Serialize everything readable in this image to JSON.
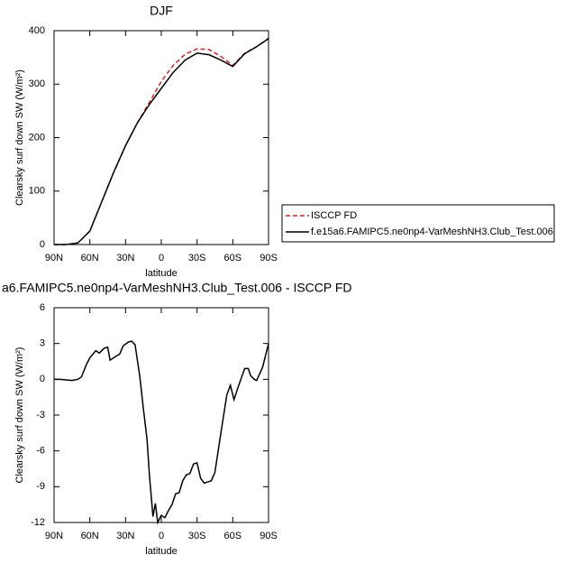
{
  "chart_data": [
    {
      "type": "line",
      "title": "DJF",
      "xlabel": "latitude",
      "ylabel": "Clearsky surf down SW (W/m²)",
      "x": [
        90,
        80,
        70,
        60,
        50,
        40,
        30,
        20,
        10,
        0,
        -10,
        -20,
        -30,
        -40,
        -50,
        -60,
        -70,
        -80,
        -90
      ],
      "xlim": [
        90,
        -90
      ],
      "xticks": [
        {
          "value": 90,
          "label": "90N"
        },
        {
          "value": 60,
          "label": "60N"
        },
        {
          "value": 30,
          "label": "30N"
        },
        0,
        {
          "value": -30,
          "label": "30S"
        },
        {
          "value": -60,
          "label": "60S"
        },
        {
          "value": -90,
          "label": "90S"
        }
      ],
      "ylim": [
        0,
        400
      ],
      "yticks": [
        0,
        100,
        200,
        300,
        400
      ],
      "legend": "right",
      "series": [
        {
          "name": "ISCCP FD",
          "color": "#e02020",
          "dash": true,
          "values": [
            0,
            0,
            3,
            25,
            80,
            135,
            185,
            228,
            266,
            305,
            335,
            356,
            366,
            365,
            352,
            335,
            358,
            370,
            386
          ]
        },
        {
          "name": "f.e15a6.FAMIPC5.ne0np4-VarMeshNH3.Club_Test.006",
          "color": "#000000",
          "values": [
            0,
            0,
            3,
            25,
            80,
            135,
            185,
            228,
            262,
            292,
            322,
            345,
            358,
            355,
            345,
            333,
            357,
            370,
            385
          ]
        }
      ]
    },
    {
      "type": "line",
      "title": "a6.FAMIPC5.ne0np4-VarMeshNH3.Club_Test.006 - ISCCP FD",
      "xlabel": "latitude",
      "ylabel": "Clearsky surf down SW (W/m²)",
      "x": [
        90,
        85,
        80,
        75,
        70,
        67,
        63,
        60,
        55,
        52,
        48,
        45,
        43,
        40,
        37,
        35,
        32,
        28,
        25,
        22,
        18,
        15,
        12,
        10,
        7,
        5,
        3,
        0,
        -3,
        -6,
        -9,
        -12,
        -15,
        -18,
        -21,
        -24,
        -27,
        -30,
        -33,
        -36,
        -39,
        -42,
        -45,
        -50,
        -55,
        -58,
        -61,
        -65,
        -70,
        -73,
        -75,
        -78,
        -80,
        -85,
        -90
      ],
      "xlim": [
        90,
        -90
      ],
      "xticks": [
        {
          "value": 90,
          "label": "90N"
        },
        {
          "value": 60,
          "label": "60N"
        },
        {
          "value": 30,
          "label": "30N"
        },
        0,
        {
          "value": -30,
          "label": "30S"
        },
        {
          "value": -60,
          "label": "60S"
        },
        {
          "value": -90,
          "label": "90S"
        }
      ],
      "ylim": [
        -12,
        6
      ],
      "yticks": [
        -12,
        -9,
        -6,
        -3,
        0,
        3,
        6
      ],
      "series": [
        {
          "color": "#000000",
          "values": [
            0,
            0,
            -0.05,
            -0.1,
            0,
            0.2,
            1.2,
            1.8,
            2.4,
            2.2,
            2.6,
            2.7,
            1.6,
            1.8,
            2.0,
            2.1,
            2.8,
            3.1,
            3.2,
            2.9,
            0.2,
            -2.5,
            -5,
            -8,
            -11.5,
            -10.4,
            -12,
            -11.4,
            -11.6,
            -11,
            -10.5,
            -9.6,
            -9.5,
            -8.5,
            -8,
            -7.9,
            -7.1,
            -7,
            -8.3,
            -8.7,
            -8.6,
            -8.5,
            -7.8,
            -4.5,
            -1.3,
            -0.5,
            -1.7,
            -0.5,
            0.9,
            0.9,
            0.3,
            0,
            -0.1,
            1.0,
            3.0
          ]
        }
      ]
    }
  ]
}
